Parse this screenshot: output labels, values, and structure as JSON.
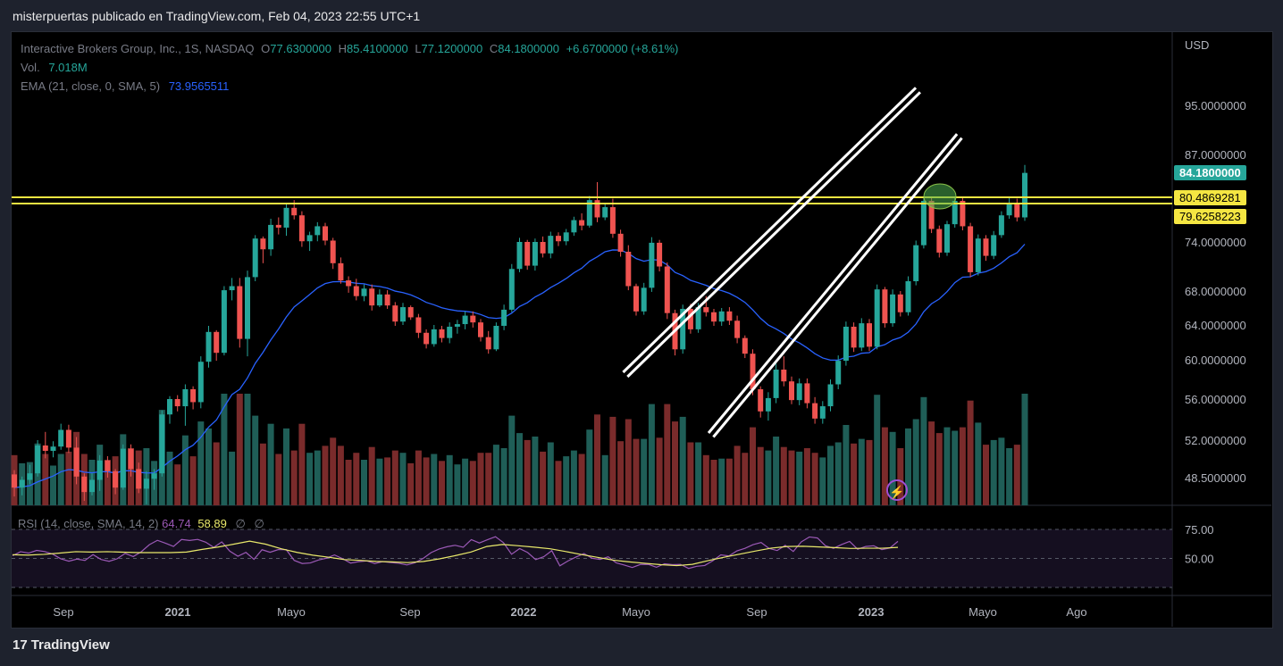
{
  "header": {
    "title": "misterpuertas publicado en TradingView.com, Feb 04, 2023 22:55 UTC+1"
  },
  "legend": {
    "symbol": "Interactive Brokers Group, Inc., 1S, NASDAQ",
    "o_label": "O",
    "o": "77.6300000",
    "h_label": "H",
    "h": "85.4100000",
    "l_label": "L",
    "l": "77.1200000",
    "c_label": "C",
    "c": "84.1800000",
    "change": "+6.6700000 (+8.61%)",
    "vol_label": "Vol.",
    "vol": "7.018M",
    "ema_label": "EMA (21, close, 0, SMA, 5)",
    "ema": "73.9565511"
  },
  "rsi_legend": {
    "label": "RSI (14, close, SMA, 14, 2)",
    "rsi": "64.74",
    "sma": "58.89",
    "z1": "∅",
    "z2": "∅"
  },
  "price_tags": {
    "last": "84.1800000",
    "level1": "80.4869281",
    "level2": "79.6258223"
  },
  "currency": "USD",
  "brand": {
    "logo": "17",
    "name": "TradingView"
  },
  "colors": {
    "up": "#26a69a",
    "down": "#ef5350",
    "ema": "#2962ff",
    "level": "#f5e642",
    "rsi": "#9b59b6",
    "rsi_ma": "#e9e96b"
  },
  "chart_data": {
    "type": "candlestick",
    "currency": "USD",
    "y_ticks": [
      "95.0000000",
      "87.0000000",
      "74.0000000",
      "68.0000000",
      "64.0000000",
      "60.0000000",
      "56.0000000",
      "52.0000000",
      "48.5000000"
    ],
    "x_ticks": [
      "Sep",
      "2021",
      "Mayo",
      "Sep",
      "2022",
      "Mayo",
      "Sep",
      "2023",
      "Mayo",
      "Ago"
    ],
    "horizontal_levels": [
      80.4869281,
      79.6258223
    ],
    "channel": {
      "upper": [
        [
          "2022-04-20",
          58.5
        ],
        [
          "2023-02-25",
          97.5
        ]
      ],
      "lower": [
        [
          "2022-07-20",
          52.5
        ],
        [
          "2023-04-10",
          90.0
        ]
      ]
    },
    "ohlc_weekly": [
      [
        48.8,
        49.2,
        46.8,
        47.6
      ],
      [
        47.6,
        48.6,
        46.9,
        48.3
      ],
      [
        48.3,
        49.7,
        47.9,
        48.9
      ],
      [
        48.9,
        52.0,
        48.6,
        51.5
      ],
      [
        51.5,
        52.8,
        50.3,
        51.0
      ],
      [
        51.0,
        51.9,
        50.4,
        51.4
      ],
      [
        51.4,
        53.6,
        51.1,
        53.0
      ],
      [
        53.0,
        53.5,
        50.8,
        51.3
      ],
      [
        51.3,
        52.3,
        47.9,
        48.6
      ],
      [
        48.6,
        48.9,
        46.4,
        47.2
      ],
      [
        47.2,
        48.9,
        46.9,
        48.3
      ],
      [
        48.3,
        50.6,
        47.3,
        50.1
      ],
      [
        50.1,
        50.5,
        48.5,
        49.1
      ],
      [
        49.1,
        49.3,
        47.0,
        47.6
      ],
      [
        47.6,
        51.6,
        47.4,
        51.2
      ],
      [
        51.2,
        51.6,
        48.6,
        49.3
      ],
      [
        49.3,
        49.9,
        47.1,
        47.5
      ],
      [
        47.5,
        49.1,
        46.1,
        48.4
      ],
      [
        48.4,
        49.3,
        47.4,
        48.9
      ],
      [
        48.9,
        54.9,
        48.6,
        54.5
      ],
      [
        54.5,
        56.3,
        53.6,
        56.0
      ],
      [
        56.0,
        56.4,
        54.8,
        55.3
      ],
      [
        55.3,
        57.5,
        53.4,
        57.0
      ],
      [
        57.0,
        57.3,
        55.0,
        55.7
      ],
      [
        55.7,
        60.4,
        55.1,
        59.8
      ],
      [
        59.8,
        63.9,
        59.2,
        63.2
      ],
      [
        63.2,
        63.4,
        59.9,
        60.8
      ],
      [
        60.8,
        68.6,
        60.5,
        68.1
      ],
      [
        68.1,
        69.6,
        66.9,
        68.6
      ],
      [
        68.6,
        69.6,
        61.4,
        62.4
      ],
      [
        62.4,
        70.5,
        60.4,
        69.7
      ],
      [
        69.7,
        75.0,
        69.2,
        74.5
      ],
      [
        74.5,
        74.8,
        71.4,
        73.1
      ],
      [
        73.1,
        77.4,
        72.3,
        76.5
      ],
      [
        76.5,
        77.6,
        75.1,
        76.1
      ],
      [
        76.1,
        79.6,
        74.9,
        79.0
      ],
      [
        79.0,
        80.1,
        77.3,
        77.9
      ],
      [
        77.9,
        78.5,
        73.4,
        74.1
      ],
      [
        74.1,
        75.5,
        72.9,
        75.0
      ],
      [
        75.0,
        76.9,
        74.1,
        76.3
      ],
      [
        76.3,
        76.8,
        73.6,
        74.2
      ],
      [
        74.2,
        74.6,
        70.7,
        71.4
      ],
      [
        71.4,
        72.1,
        68.9,
        69.3
      ],
      [
        69.3,
        69.8,
        67.8,
        68.6
      ],
      [
        68.6,
        69.5,
        66.9,
        67.4
      ],
      [
        67.4,
        68.8,
        66.8,
        68.3
      ],
      [
        68.3,
        68.8,
        65.7,
        66.3
      ],
      [
        66.3,
        68.2,
        66.1,
        67.6
      ],
      [
        67.6,
        68.1,
        65.9,
        66.3
      ],
      [
        66.3,
        66.7,
        63.9,
        64.4
      ],
      [
        64.4,
        66.6,
        64.0,
        66.1
      ],
      [
        66.1,
        66.3,
        64.6,
        64.9
      ],
      [
        64.9,
        65.3,
        62.5,
        63.1
      ],
      [
        63.1,
        63.5,
        61.3,
        61.8
      ],
      [
        61.8,
        64.0,
        61.5,
        63.5
      ],
      [
        63.5,
        63.9,
        62.0,
        62.5
      ],
      [
        62.5,
        64.3,
        61.9,
        63.8
      ],
      [
        63.8,
        64.6,
        63.0,
        64.1
      ],
      [
        64.1,
        65.6,
        63.5,
        65.1
      ],
      [
        65.1,
        65.6,
        63.7,
        64.3
      ],
      [
        64.3,
        64.7,
        62.1,
        62.6
      ],
      [
        62.6,
        63.3,
        60.7,
        61.2
      ],
      [
        61.2,
        64.3,
        61.0,
        63.9
      ],
      [
        63.9,
        66.4,
        63.4,
        65.8
      ],
      [
        65.8,
        71.3,
        65.5,
        70.7
      ],
      [
        70.7,
        74.6,
        70.3,
        74.0
      ],
      [
        74.0,
        74.3,
        70.6,
        71.1
      ],
      [
        71.1,
        74.5,
        70.5,
        74.0
      ],
      [
        74.0,
        74.8,
        72.1,
        72.6
      ],
      [
        72.6,
        75.5,
        72.0,
        74.9
      ],
      [
        74.9,
        75.4,
        73.5,
        74.1
      ],
      [
        74.1,
        75.9,
        73.6,
        75.4
      ],
      [
        75.4,
        77.7,
        74.9,
        77.2
      ],
      [
        77.2,
        78.2,
        75.7,
        76.4
      ],
      [
        76.4,
        80.7,
        76.1,
        80.1
      ],
      [
        80.1,
        82.8,
        76.9,
        77.6
      ],
      [
        77.6,
        79.6,
        77.2,
        79.1
      ],
      [
        79.1,
        80.3,
        74.6,
        75.2
      ],
      [
        75.2,
        75.8,
        72.2,
        72.8
      ],
      [
        72.8,
        73.6,
        68.1,
        68.6
      ],
      [
        68.6,
        68.9,
        65.1,
        65.6
      ],
      [
        65.6,
        69.0,
        65.2,
        68.4
      ],
      [
        68.4,
        74.7,
        67.9,
        73.9
      ],
      [
        73.9,
        74.3,
        70.4,
        71.0
      ],
      [
        71.0,
        71.5,
        64.7,
        65.4
      ],
      [
        65.4,
        65.8,
        60.5,
        61.2
      ],
      [
        61.2,
        66.4,
        60.7,
        65.9
      ],
      [
        65.9,
        66.5,
        63.0,
        63.5
      ],
      [
        63.5,
        66.6,
        63.1,
        66.1
      ],
      [
        66.1,
        67.4,
        65.0,
        65.5
      ],
      [
        65.5,
        65.9,
        63.9,
        64.4
      ],
      [
        64.4,
        66.0,
        63.9,
        65.6
      ],
      [
        65.6,
        66.1,
        64.0,
        64.5
      ],
      [
        64.5,
        65.1,
        61.9,
        62.5
      ],
      [
        62.5,
        62.8,
        60.2,
        60.7
      ],
      [
        60.7,
        61.2,
        56.4,
        57.0
      ],
      [
        57.0,
        57.3,
        54.2,
        54.8
      ],
      [
        54.8,
        56.7,
        53.9,
        56.1
      ],
      [
        56.1,
        59.6,
        55.6,
        59.0
      ],
      [
        59.0,
        60.4,
        57.3,
        57.8
      ],
      [
        57.8,
        58.3,
        55.5,
        55.9
      ],
      [
        55.9,
        58.1,
        55.4,
        57.6
      ],
      [
        57.6,
        58.1,
        55.1,
        55.6
      ],
      [
        55.6,
        56.2,
        53.6,
        54.1
      ],
      [
        54.1,
        55.8,
        53.6,
        55.3
      ],
      [
        55.3,
        58.0,
        54.8,
        57.5
      ],
      [
        57.5,
        60.5,
        57.0,
        59.9
      ],
      [
        59.9,
        64.4,
        59.4,
        63.8
      ],
      [
        63.8,
        64.3,
        60.9,
        61.4
      ],
      [
        61.4,
        64.8,
        61.0,
        64.2
      ],
      [
        64.2,
        64.7,
        61.0,
        61.5
      ],
      [
        61.5,
        68.8,
        61.2,
        68.2
      ],
      [
        68.2,
        68.5,
        63.7,
        64.2
      ],
      [
        64.2,
        68.2,
        63.8,
        67.6
      ],
      [
        67.6,
        68.0,
        65.0,
        65.5
      ],
      [
        65.5,
        69.8,
        65.1,
        69.2
      ],
      [
        69.2,
        74.2,
        68.7,
        73.6
      ],
      [
        73.6,
        80.6,
        73.2,
        80.0
      ],
      [
        80.0,
        80.6,
        75.3,
        75.9
      ],
      [
        75.9,
        76.4,
        72.1,
        72.7
      ],
      [
        72.7,
        77.1,
        72.3,
        76.6
      ],
      [
        76.6,
        80.6,
        76.1,
        80.0
      ],
      [
        80.0,
        80.5,
        75.7,
        76.3
      ],
      [
        76.3,
        76.8,
        69.7,
        70.3
      ],
      [
        70.3,
        75.1,
        69.9,
        74.5
      ],
      [
        74.5,
        75.0,
        71.7,
        72.3
      ],
      [
        72.3,
        75.6,
        71.9,
        75.0
      ],
      [
        75.0,
        78.5,
        74.6,
        77.9
      ],
      [
        77.9,
        80.4,
        77.4,
        79.7
      ],
      [
        79.7,
        80.3,
        77.0,
        77.6
      ],
      [
        77.6,
        85.4,
        77.1,
        84.2
      ]
    ],
    "rsi_ticks": [
      "75.00",
      "50.00"
    ],
    "rsi": [
      52.3,
      55.8,
      54.6,
      56.9,
      55.9,
      53.7,
      49.7,
      47.6,
      49.4,
      48.3,
      53.3,
      49.1,
      47.5,
      49.7,
      54.3,
      51.6,
      55.8,
      61.8,
      65.6,
      63.1,
      60.3,
      66.3,
      65.5,
      66.4,
      64.0,
      59.5,
      64.2,
      56.2,
      51.9,
      55.2,
      49.2,
      57.5,
      55.3,
      57.6,
      57.6,
      48.3,
      45.6,
      46.1,
      48.6,
      50.2,
      53.0,
      49.8,
      46.0,
      47.2,
      47.9,
      45.6,
      47.3,
      46.4,
      45.8,
      44.4,
      46.3,
      49.9,
      55.0,
      58.1,
      60.1,
      61.3,
      59.6,
      66.2,
      63.3,
      66.1,
      68.7,
      63.5,
      53.6,
      58.5,
      55.1,
      49.0,
      51.5,
      56.7,
      43.6,
      47.8,
      51.2,
      54.2,
      50.2,
      49.1,
      51.4,
      46.2,
      44.3,
      42.2,
      44.8,
      44.9,
      42.4,
      45.4,
      44.6,
      44.8,
      41.4,
      43.2,
      43.9,
      48.0,
      53.1,
      52.1,
      56.5,
      58.7,
      61.9,
      63.7,
      58.6,
      56.8,
      61.3,
      56.0,
      64.3,
      68.5,
      67.6,
      60.9,
      58.7,
      62.0,
      64.7,
      57.9,
      60.3,
      60.9,
      57.6,
      59.0,
      64.7
    ],
    "rsi_ma": [
      53.2,
      52.9,
      53.5,
      54.6,
      55.8,
      55.5,
      55.8,
      55.4,
      55.0,
      55.0,
      55.0,
      55.5,
      57.8,
      59.8,
      62.3,
      64.9,
      62.3,
      58.3,
      55.2,
      52.8,
      51.0,
      49.0,
      48.3,
      47.4,
      47.0,
      46.4,
      47.4,
      49.6,
      52.4,
      55.5,
      60.3,
      62.0,
      60.9,
      59.7,
      58.3,
      55.9,
      53.3,
      50.9,
      48.5,
      47.0,
      45.8,
      44.6,
      43.8,
      44.9,
      48.1,
      51.0,
      53.7,
      56.4,
      58.9,
      60.3,
      60.5,
      59.9,
      59.3,
      58.6,
      58.8,
      58.8,
      59.5
    ]
  }
}
